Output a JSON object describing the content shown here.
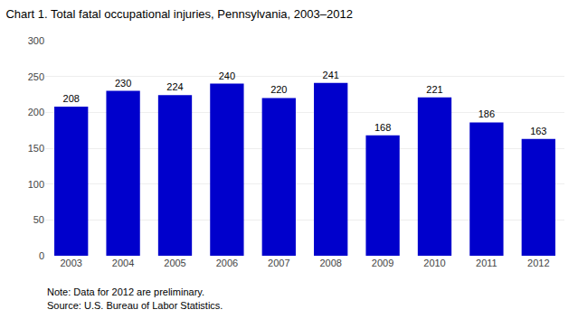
{
  "chart_data": {
    "type": "bar",
    "title": "Chart 1. Total fatal occupational injuries, Pennsylvania, 2003–2012",
    "categories": [
      "2003",
      "2004",
      "2005",
      "2006",
      "2007",
      "2008",
      "2009",
      "2010",
      "2011",
      "2012"
    ],
    "values": [
      208,
      230,
      224,
      240,
      220,
      241,
      168,
      221,
      186,
      163
    ],
    "color": "#0000CC",
    "ylim": [
      0,
      300
    ],
    "yticks": [
      0,
      50,
      100,
      150,
      200,
      250,
      300
    ],
    "grid": true,
    "data_labels": true,
    "annotations": [
      "Note: Data for 2012 are preliminary.",
      "Source: U.S. Bureau of Labor Statistics."
    ]
  }
}
